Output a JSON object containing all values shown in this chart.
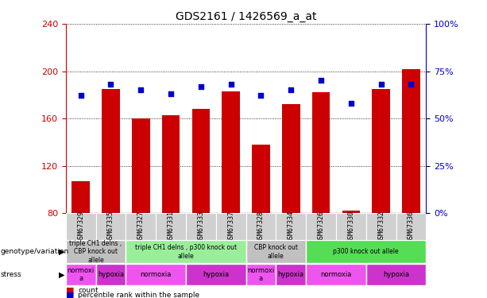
{
  "title": "GDS2161 / 1426569_a_at",
  "samples": [
    "GSM67329",
    "GSM67335",
    "GSM67327",
    "GSM67331",
    "GSM67333",
    "GSM67337",
    "GSM67328",
    "GSM67334",
    "GSM67326",
    "GSM67330",
    "GSM67332",
    "GSM67336"
  ],
  "counts": [
    107,
    185,
    160,
    163,
    168,
    183,
    138,
    172,
    182,
    82,
    185,
    202
  ],
  "percentiles": [
    62,
    68,
    65,
    63,
    67,
    68,
    62,
    65,
    70,
    58,
    68,
    68
  ],
  "ylim_left": [
    80,
    240
  ],
  "ylim_right": [
    0,
    100
  ],
  "yticks_left": [
    80,
    120,
    160,
    200,
    240
  ],
  "yticks_right": [
    0,
    25,
    50,
    75,
    100
  ],
  "bar_color": "#CC0000",
  "dot_color": "#0000CC",
  "sample_cell_color": "#d0d0d0",
  "genotype_groups": [
    {
      "label": "triple CH1 delns ,\nCBP knock out\nallele",
      "start": 0,
      "end": 2,
      "color": "#c0c0c0"
    },
    {
      "label": "triple CH1 delns , p300 knock out\nallele",
      "start": 2,
      "end": 6,
      "color": "#99ee99"
    },
    {
      "label": "CBP knock out\nallele",
      "start": 6,
      "end": 8,
      "color": "#c0c0c0"
    },
    {
      "label": "p300 knock out allele",
      "start": 8,
      "end": 12,
      "color": "#55dd55"
    }
  ],
  "stress_groups": [
    {
      "label": "normoxi\na",
      "start": 0,
      "end": 1,
      "color": "#ee55ee"
    },
    {
      "label": "hypoxia",
      "start": 1,
      "end": 2,
      "color": "#cc33cc"
    },
    {
      "label": "normoxia",
      "start": 2,
      "end": 4,
      "color": "#ee55ee"
    },
    {
      "label": "hypoxia",
      "start": 4,
      "end": 6,
      "color": "#cc33cc"
    },
    {
      "label": "normoxi\na",
      "start": 6,
      "end": 7,
      "color": "#ee55ee"
    },
    {
      "label": "hypoxia",
      "start": 7,
      "end": 8,
      "color": "#cc33cc"
    },
    {
      "label": "normoxia",
      "start": 8,
      "end": 10,
      "color": "#ee55ee"
    },
    {
      "label": "hypoxia",
      "start": 10,
      "end": 12,
      "color": "#cc33cc"
    }
  ],
  "left_label_color": "#CC0000",
  "right_label_color": "#0000CC",
  "base_value": 80,
  "fig_width": 6.13,
  "fig_height": 3.75
}
